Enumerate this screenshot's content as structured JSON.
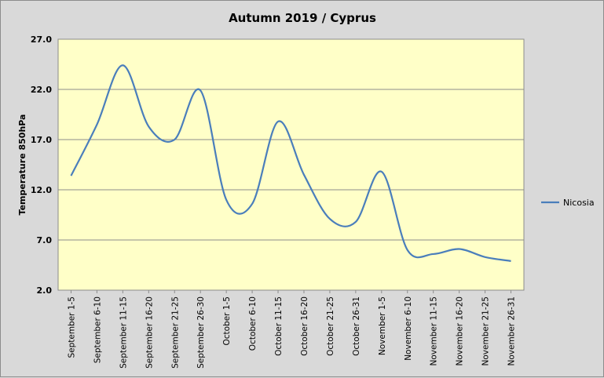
{
  "chart_data": {
    "type": "line",
    "title": "Autumn 2019 / Cyprus",
    "xlabel": "",
    "ylabel": "Temperature 850hPa",
    "ylim": [
      2.0,
      27.0
    ],
    "yticks": [
      "2.0",
      "7.0",
      "12.0",
      "17.0",
      "22.0",
      "27.0"
    ],
    "ytick_values": [
      2,
      7,
      12,
      17,
      22,
      27
    ],
    "grid": true,
    "legend_position": "right",
    "plot_background": "#ffffc8",
    "categories": [
      "September 1-5",
      "September 6-10",
      "September 11-15",
      "September 16-20",
      "September 21-25",
      "September 26-30",
      "October 1-5",
      "October 6-10",
      "October 11-15",
      "October 16-20",
      "October 21-25",
      "October 26-31",
      "November 1-5",
      "November 6-10",
      "November 11-15",
      "November 16-20",
      "November 21-25",
      "November 26-31"
    ],
    "series": [
      {
        "name": "Nicosia",
        "color": "#4a7ebb",
        "values": [
          13.4,
          18.5,
          24.4,
          18.3,
          17.0,
          21.9,
          11.0,
          10.6,
          18.8,
          13.5,
          9.1,
          8.8,
          13.8,
          6.0,
          5.6,
          6.1,
          5.3,
          4.9
        ]
      }
    ]
  }
}
